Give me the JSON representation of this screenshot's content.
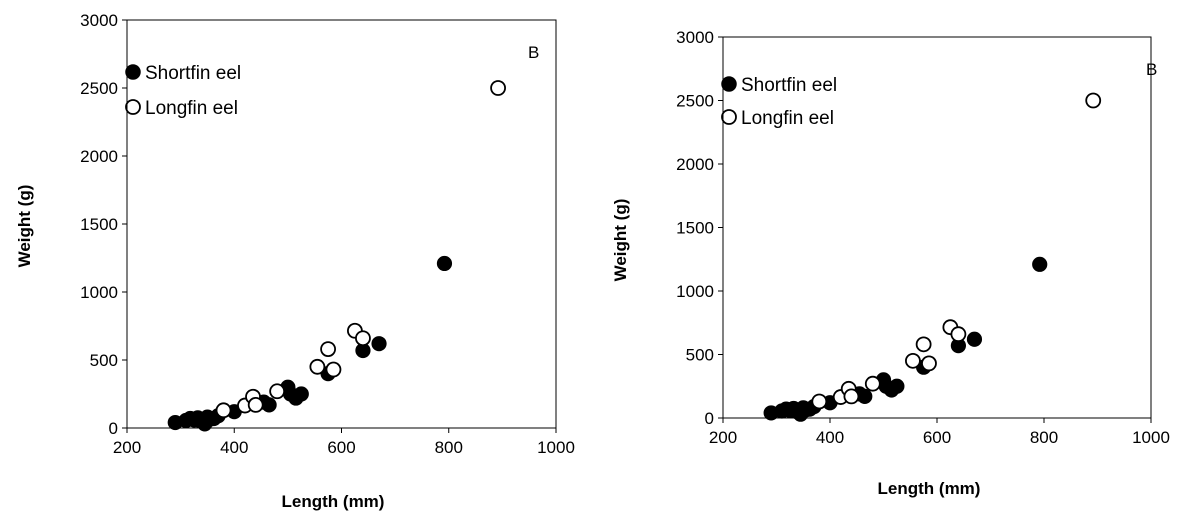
{
  "chart_data": [
    {
      "type": "scatter",
      "panel_label": "B",
      "xlabel": "Length (mm)",
      "ylabel": "Weight (g)",
      "xlim": [
        200,
        1000
      ],
      "ylim": [
        0,
        3000
      ],
      "xticks": [
        "200",
        "400",
        "600",
        "800",
        "1000"
      ],
      "yticks": [
        "0",
        "500",
        "1000",
        "1500",
        "2000",
        "2500",
        "3000"
      ],
      "legend_position": "top-left",
      "grid": false,
      "series": [
        {
          "name": "Shortfin eel",
          "marker": "filled-circle",
          "x": [
            290,
            310,
            318,
            325,
            332,
            338,
            345,
            350,
            355,
            362,
            370,
            400,
            455,
            465,
            500,
            505,
            515,
            525,
            575,
            640,
            670,
            792
          ],
          "y": [
            40,
            55,
            70,
            60,
            75,
            50,
            30,
            80,
            65,
            70,
            90,
            120,
            190,
            170,
            300,
            250,
            220,
            250,
            400,
            570,
            620,
            1210
          ]
        },
        {
          "name": "Longfin eel",
          "marker": "open-circle",
          "x": [
            380,
            420,
            435,
            440,
            480,
            555,
            575,
            585,
            625,
            640,
            892
          ],
          "y": [
            130,
            165,
            230,
            170,
            270,
            450,
            580,
            430,
            715,
            660,
            2500
          ]
        }
      ]
    },
    {
      "type": "scatter",
      "panel_label": "B",
      "xlabel": "Length (mm)",
      "ylabel": "Weight (g)",
      "xlim": [
        200,
        1000
      ],
      "ylim": [
        0,
        3000
      ],
      "xticks": [
        "200",
        "400",
        "600",
        "800",
        "1000"
      ],
      "yticks": [
        "0",
        "500",
        "1000",
        "1500",
        "2000",
        "2500",
        "3000"
      ],
      "legend_position": "top-left",
      "grid": false,
      "series": [
        {
          "name": "Shortfin eel",
          "marker": "filled-circle",
          "x": [
            290,
            310,
            318,
            325,
            332,
            338,
            345,
            350,
            355,
            362,
            370,
            400,
            455,
            465,
            500,
            505,
            515,
            525,
            575,
            640,
            670,
            792
          ],
          "y": [
            40,
            55,
            70,
            60,
            75,
            50,
            30,
            80,
            65,
            70,
            90,
            120,
            190,
            170,
            300,
            250,
            220,
            250,
            400,
            570,
            620,
            1210
          ]
        },
        {
          "name": "Longfin eel",
          "marker": "open-circle",
          "x": [
            380,
            420,
            435,
            440,
            480,
            555,
            575,
            585,
            625,
            640,
            892
          ],
          "y": [
            130,
            165,
            230,
            170,
            270,
            450,
            580,
            430,
            715,
            660,
            2500
          ]
        }
      ]
    }
  ]
}
